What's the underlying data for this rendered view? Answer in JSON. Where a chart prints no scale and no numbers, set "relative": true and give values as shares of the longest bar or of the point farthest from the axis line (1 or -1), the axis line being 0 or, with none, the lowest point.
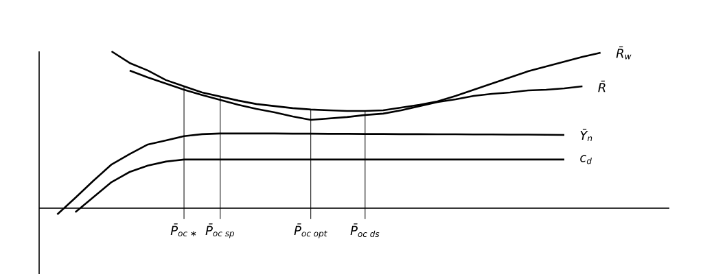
{
  "chart_data": {
    "type": "line",
    "relative": true,
    "tick_labels": "x",
    "ylim": [
      -0.42,
      1.0
    ],
    "categories": [
      null,
      null,
      null,
      null,
      null,
      null,
      null,
      null,
      "\\text{P̄}_{\\text{oc ∗}}",
      null,
      "\\text{P̄}_{\\text{oc sp}}",
      null,
      null,
      null,
      null,
      "\\text{P̄}_{\\text{oc opt}}",
      null,
      null,
      "\\text{P̄}_{\\text{oc ds}}",
      null,
      null,
      null,
      null,
      null,
      null,
      null,
      null,
      null,
      null,
      null,
      null,
      null,
      null,
      null,
      null
    ],
    "series": [
      {
        "name": "\\text{R̄}_{\\text{w}}",
        "color": "#000000",
        "values": [
          null,
          null,
          null,
          null,
          1.0,
          0.926,
          0.878,
          0.817,
          0.777,
          0.738,
          0.712,
          0.686,
          0.664,
          0.651,
          0.638,
          0.629,
          0.624,
          0.62,
          0.62,
          0.624,
          0.642,
          0.659,
          0.681,
          0.716,
          0.755,
          0.795,
          0.834,
          0.873,
          0.904,
          0.934,
          0.965,
          0.991,
          null,
          null,
          null
        ]
      },
      {
        "name": "\\text{R̄}",
        "color": "#000000",
        "values": [
          null,
          null,
          null,
          null,
          null,
          0.878,
          0.834,
          0.795,
          0.755,
          0.721,
          0.69,
          0.659,
          0.633,
          0.611,
          0.585,
          0.563,
          0.572,
          0.581,
          0.594,
          0.603,
          0.624,
          0.651,
          0.677,
          0.694,
          0.716,
          0.729,
          0.738,
          0.751,
          0.755,
          0.764,
          0.777,
          null,
          null,
          null,
          null
        ]
      },
      {
        "name": "\\text{Ȳ}_{\\text{n}}",
        "color": "#000000",
        "values": [
          null,
          -0.04,
          0.066,
          0.175,
          0.279,
          0.345,
          0.406,
          0.432,
          0.459,
          0.472,
          0.476,
          0.476,
          0.476,
          0.476,
          0.475,
          0.475,
          0.474,
          0.474,
          0.473,
          0.473,
          0.472,
          0.472,
          0.471,
          0.471,
          0.47,
          0.47,
          0.469,
          0.469,
          0.468,
          0.467,
          null,
          null,
          null,
          null,
          null
        ]
      },
      {
        "name": "\\text{c}_{\\text{d}}",
        "color": "#000000",
        "values": [
          null,
          null,
          -0.026,
          0.07,
          0.166,
          0.231,
          0.271,
          0.297,
          0.31,
          0.31,
          0.31,
          0.31,
          0.31,
          0.31,
          0.31,
          0.31,
          0.31,
          0.31,
          0.31,
          0.31,
          0.31,
          0.31,
          0.31,
          0.31,
          0.31,
          0.31,
          0.31,
          0.31,
          0.31,
          0.31,
          null,
          null,
          null,
          null,
          null
        ]
      }
    ],
    "ref_lines": [
      {
        "axis": "x",
        "value": "\\text{P̄}_{\\text{oc ∗}}"
      },
      {
        "axis": "x",
        "value": "\\text{P̄}_{\\text{oc sp}}"
      },
      {
        "axis": "x",
        "value": "\\text{P̄}_{\\text{oc opt}}"
      },
      {
        "axis": "x",
        "value": "\\text{P̄}_{\\text{oc ds}}"
      }
    ]
  }
}
